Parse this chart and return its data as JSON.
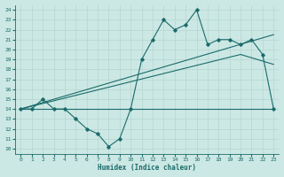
{
  "title": "",
  "xlabel": "Humidex (Indice chaleur)",
  "ylabel": "",
  "xlim": [
    -0.5,
    23.5
  ],
  "ylim": [
    9.5,
    24.5
  ],
  "xticks": [
    0,
    1,
    2,
    3,
    4,
    5,
    6,
    7,
    8,
    9,
    10,
    11,
    12,
    13,
    14,
    15,
    16,
    17,
    18,
    19,
    20,
    21,
    22,
    23
  ],
  "yticks": [
    10,
    11,
    12,
    13,
    14,
    15,
    16,
    17,
    18,
    19,
    20,
    21,
    22,
    23,
    24
  ],
  "bg_color": "#cce8e4",
  "grid_color": "#b8d8d4",
  "line_color": "#1a6b6a",
  "line1_x": [
    0,
    1,
    2,
    3,
    4,
    5,
    6,
    7,
    8,
    9,
    10,
    11,
    12,
    13,
    14,
    15,
    16,
    17,
    18,
    19,
    20,
    21,
    22,
    23
  ],
  "line1_y": [
    14.0,
    14.0,
    15.0,
    14.0,
    14.0,
    13.0,
    12.0,
    11.5,
    10.2,
    11.0,
    14.0,
    19.0,
    21.0,
    23.0,
    22.0,
    22.5,
    24.0,
    20.5,
    21.0,
    21.0,
    20.5,
    21.0,
    19.5,
    14.0
  ],
  "line2_x": [
    0,
    23
  ],
  "line2_y": [
    14.0,
    14.0
  ],
  "line3_x": [
    0,
    20,
    23
  ],
  "line3_y": [
    14.0,
    19.5,
    18.5
  ],
  "line4_x": [
    0,
    23
  ],
  "line4_y": [
    14.0,
    21.5
  ]
}
